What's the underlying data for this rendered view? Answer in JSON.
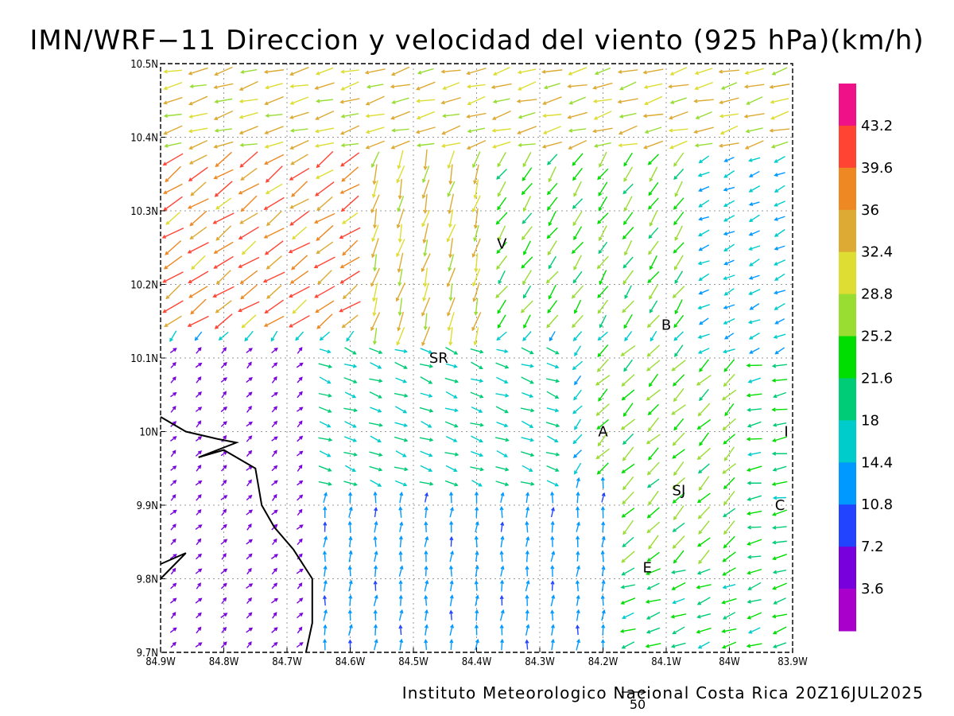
{
  "title": "IMN/WRF−11 Direccion y velocidad del viento (925 hPa)(km/h)",
  "footer": "Instituto Meteorologico Nacional Costa Rica 20Z16JUL2025",
  "scale_arrow_label": "50",
  "chart_data": {
    "type": "vector-field",
    "quantity": "wind direction and speed at 925 hPa",
    "units": "km/h",
    "x_ticks": [
      "84.9W",
      "84.8W",
      "84.7W",
      "84.6W",
      "84.5W",
      "84.4W",
      "84.3W",
      "84.2W",
      "84.1W",
      "84W",
      "83.9W"
    ],
    "y_ticks": [
      "10.5N",
      "10.4N",
      "10.3N",
      "10.2N",
      "10.1N",
      "10N",
      "9.9N",
      "9.8N",
      "9.7N"
    ],
    "xlim": [
      -84.9,
      -83.9
    ],
    "ylim": [
      9.7,
      10.5
    ],
    "grid": "dotted",
    "colorbar": {
      "position": "right",
      "labels": [
        "43.2",
        "39.6",
        "36",
        "32.4",
        "28.8",
        "25.2",
        "21.6",
        "18",
        "14.4",
        "10.8",
        "7.2",
        "3.6"
      ],
      "colors": [
        "#ee1188",
        "#ff4433",
        "#ee8822",
        "#ddaa33",
        "#dddd33",
        "#99dd33",
        "#00dd00",
        "#00cc77",
        "#00cccc",
        "#0099ff",
        "#2244ff",
        "#7700dd",
        "#aa00cc"
      ]
    },
    "places": [
      {
        "label": "V",
        "lon": -84.36,
        "lat": 10.255
      },
      {
        "label": "SR",
        "lon": -84.46,
        "lat": 10.1
      },
      {
        "label": "B",
        "lon": -84.1,
        "lat": 10.145
      },
      {
        "label": "A",
        "lon": -84.2,
        "lat": 10.0
      },
      {
        "label": "SJ",
        "lon": -84.08,
        "lat": 9.92
      },
      {
        "label": "C",
        "lon": -83.92,
        "lat": 9.9
      },
      {
        "label": "E",
        "lon": -84.13,
        "lat": 9.815
      },
      {
        "label": "I",
        "lon": -83.91,
        "lat": 10.0
      }
    ],
    "regions": [
      {
        "lon_min": -84.9,
        "lon_max": -83.9,
        "lat_min": 10.38,
        "lat_max": 10.5,
        "dir": 255,
        "speed": 30
      },
      {
        "lon_min": -84.9,
        "lon_max": -84.6,
        "lat_min": 10.15,
        "lat_max": 10.38,
        "dir": 235,
        "speed": 36
      },
      {
        "lon_min": -84.6,
        "lon_max": -84.4,
        "lat_min": 10.12,
        "lat_max": 10.38,
        "dir": 195,
        "speed": 30
      },
      {
        "lon_min": -84.4,
        "lon_max": -84.05,
        "lat_min": 10.15,
        "lat_max": 10.38,
        "dir": 215,
        "speed": 23
      },
      {
        "lon_min": -84.05,
        "lon_max": -83.9,
        "lat_min": 10.1,
        "lat_max": 10.38,
        "dir": 245,
        "speed": 14
      },
      {
        "lon_min": -84.9,
        "lon_max": -84.65,
        "lat_min": 9.7,
        "lat_max": 10.12,
        "dir": 45,
        "speed": 5
      },
      {
        "lon_min": -84.65,
        "lon_max": -84.25,
        "lat_min": 9.93,
        "lat_max": 10.12,
        "dir": 110,
        "speed": 17
      },
      {
        "lon_min": -84.65,
        "lon_max": -84.2,
        "lat_min": 9.7,
        "lat_max": 9.93,
        "dir": 5,
        "speed": 12
      },
      {
        "lon_min": -84.2,
        "lon_max": -84.0,
        "lat_min": 9.82,
        "lat_max": 10.12,
        "dir": 225,
        "speed": 24
      },
      {
        "lon_min": -84.0,
        "lon_max": -83.9,
        "lat_min": 9.82,
        "lat_max": 10.12,
        "dir": 260,
        "speed": 20
      },
      {
        "lon_min": -84.2,
        "lon_max": -83.9,
        "lat_min": 9.7,
        "lat_max": 9.82,
        "dir": 250,
        "speed": 20
      }
    ],
    "coastline": [
      [
        -84.9,
        10.02
      ],
      [
        -84.86,
        10.0
      ],
      [
        -84.81,
        9.99
      ],
      [
        -84.78,
        9.985
      ],
      [
        -84.84,
        9.965
      ],
      [
        -84.8,
        9.975
      ],
      [
        -84.75,
        9.95
      ],
      [
        -84.74,
        9.9
      ],
      [
        -84.72,
        9.87
      ],
      [
        -84.69,
        9.84
      ],
      [
        -84.66,
        9.8
      ],
      [
        -84.66,
        9.74
      ],
      [
        -84.67,
        9.7
      ]
    ],
    "coast_fragment": [
      [
        -84.9,
        9.82
      ],
      [
        -84.86,
        9.835
      ],
      [
        -84.9,
        9.8
      ]
    ]
  }
}
